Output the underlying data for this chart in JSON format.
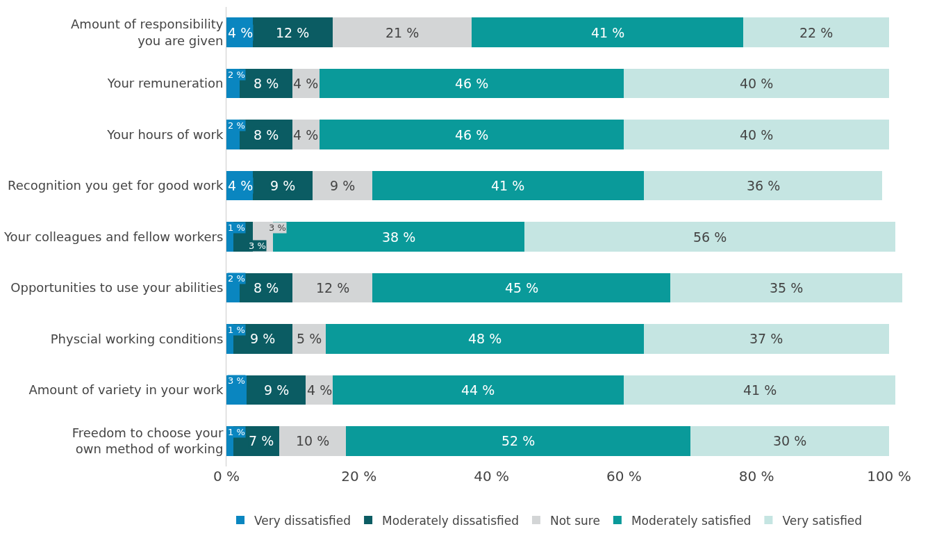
{
  "chart_data": {
    "type": "bar",
    "orientation": "horizontal",
    "stacked": true,
    "categories": [
      "Amount of responsibility\nyou are given",
      "Your remuneration",
      "Your hours of work",
      "Recognition you get for good work",
      "Your colleagues and fellow workers",
      "Opportunities to use your abilities",
      "Physcial working conditions",
      "Amount of variety in your work",
      "Freedom to choose your\nown method of working"
    ],
    "series": [
      {
        "name": "Very dissatisfied",
        "color": "#0a86c0",
        "values": [
          4,
          2,
          2,
          4,
          1,
          2,
          1,
          3,
          1
        ],
        "value_labels": [
          "4 %",
          "2 %",
          "2 %",
          "4 %",
          "1 %",
          "2 %",
          "1 %",
          "3 %",
          "1 %"
        ]
      },
      {
        "name": "Moderately dissatisfied",
        "color": "#0b5c63",
        "values": [
          12,
          8,
          8,
          9,
          3,
          8,
          9,
          9,
          7
        ],
        "value_labels": [
          "12 %",
          "8 %",
          "8 %",
          "9 %",
          "3 %",
          "8 %",
          "9 %",
          "9 %",
          "7 %"
        ]
      },
      {
        "name": "Not sure",
        "color": "#d3d5d6",
        "values": [
          21,
          4,
          4,
          9,
          3,
          12,
          5,
          4,
          10
        ],
        "value_labels": [
          "21 %",
          "4 %",
          "4 %",
          "9 %",
          "3 %",
          "12 %",
          "5 %",
          "4 %",
          "10 %"
        ]
      },
      {
        "name": "Moderately satisfied",
        "color": "#0a9a9a",
        "values": [
          41,
          46,
          46,
          41,
          38,
          45,
          48,
          44,
          52
        ],
        "value_labels": [
          "41 %",
          "46 %",
          "46 %",
          "41 %",
          "38 %",
          "45 %",
          "48 %",
          "44 %",
          "52 %"
        ]
      },
      {
        "name": "Very satisfied",
        "color": "#c5e5e2",
        "values": [
          22,
          40,
          40,
          36,
          56,
          35,
          37,
          41,
          30
        ],
        "value_labels": [
          "22 %",
          "40 %",
          "40 %",
          "36 %",
          "56 %",
          "35 %",
          "37 %",
          "41 %",
          "30 %"
        ]
      }
    ],
    "xlim": [
      0,
      102
    ],
    "xticks": [
      {
        "value": 0,
        "label": "0 %"
      },
      {
        "value": 20,
        "label": "20 %"
      },
      {
        "value": 40,
        "label": "40 %"
      },
      {
        "value": 60,
        "label": "60 %"
      },
      {
        "value": 80,
        "label": "80 %"
      },
      {
        "value": 100,
        "label": "100 %"
      }
    ],
    "grid": false,
    "legend": "bottom left"
  }
}
